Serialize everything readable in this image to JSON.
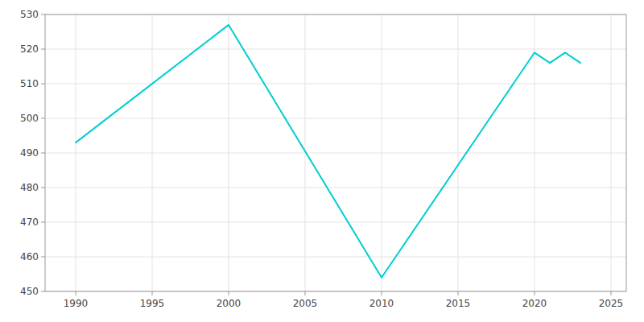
{
  "chart_data": {
    "type": "line",
    "x": [
      1990,
      2000,
      2010,
      2020,
      2021,
      2022,
      2023
    ],
    "values": [
      493,
      527,
      454,
      519,
      516,
      519,
      516
    ],
    "color": "#00CED1",
    "xlim": [
      1988,
      2026
    ],
    "ylim": [
      450,
      530
    ],
    "xticks": [
      1990,
      1995,
      2000,
      2005,
      2010,
      2015,
      2020,
      2025
    ],
    "yticks": [
      450,
      460,
      470,
      480,
      490,
      500,
      510,
      520,
      530
    ],
    "grid": true
  }
}
